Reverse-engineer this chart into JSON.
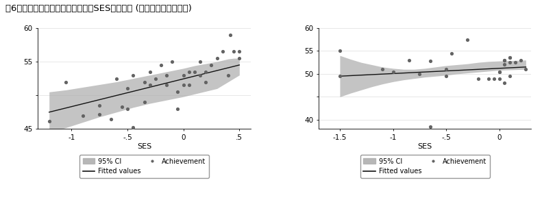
{
  "title": "嘷6　学校レベルでの学力スコアとSESの散布図 (小５が左、中２が右)",
  "title_fontsize": 9.5,
  "plot1": {
    "xlim": [
      -1.3,
      0.6
    ],
    "ylim": [
      45,
      60
    ],
    "xticks": [
      -1.0,
      -0.5,
      0.0,
      0.5
    ],
    "xtick_labels": [
      "-1",
      "-.5",
      "0",
      ".5"
    ],
    "yticks": [
      45,
      50,
      55,
      60
    ],
    "ytick_labels": [
      "45",
      "",
      "55",
      "60"
    ],
    "xlabel": "SES",
    "scatter_x": [
      -1.2,
      -1.05,
      -0.9,
      -0.75,
      -0.75,
      -0.65,
      -0.6,
      -0.55,
      -0.5,
      -0.5,
      -0.45,
      -0.45,
      -0.35,
      -0.35,
      -0.3,
      -0.3,
      -0.25,
      -0.2,
      -0.15,
      -0.15,
      -0.1,
      -0.05,
      -0.05,
      0.0,
      0.0,
      0.05,
      0.05,
      0.1,
      0.15,
      0.15,
      0.2,
      0.2,
      0.25,
      0.3,
      0.35,
      0.4,
      0.42,
      0.45,
      0.5,
      0.5
    ],
    "scatter_y": [
      46.2,
      52.0,
      47.0,
      48.5,
      47.2,
      46.5,
      52.5,
      48.3,
      51.0,
      48.0,
      45.2,
      53.0,
      52.0,
      49.0,
      53.5,
      51.5,
      52.5,
      54.5,
      53.0,
      51.5,
      55.0,
      48.0,
      50.5,
      53.0,
      51.5,
      53.5,
      51.5,
      53.5,
      53.0,
      55.0,
      53.5,
      52.0,
      54.5,
      55.5,
      56.5,
      53.0,
      59.0,
      56.5,
      55.5,
      56.5
    ],
    "fit_x0": -1.2,
    "fit_y0": 47.5,
    "fit_x1": 0.5,
    "fit_y1": 54.5,
    "ci_upper": [
      50.5,
      50.8,
      51.2,
      51.6,
      52.0,
      52.5,
      53.0,
      53.5,
      54.0,
      54.4,
      54.7,
      55.0,
      55.2,
      55.4,
      55.5,
      55.5,
      55.5
    ],
    "ci_lower": [
      44.5,
      45.2,
      46.0,
      46.8,
      47.5,
      48.2,
      48.8,
      49.3,
      49.8,
      50.2,
      50.6,
      51.0,
      51.5,
      52.0,
      52.5,
      52.8,
      53.0
    ],
    "ci_x": [
      -1.2,
      -1.05,
      -0.9,
      -0.75,
      -0.6,
      -0.45,
      -0.3,
      -0.15,
      0.0,
      0.1,
      0.2,
      0.3,
      0.35,
      0.4,
      0.45,
      0.48,
      0.5
    ]
  },
  "plot2": {
    "xlim": [
      -1.7,
      0.3
    ],
    "ylim": [
      38,
      60
    ],
    "xticks": [
      -1.5,
      -1.0,
      -0.5,
      0.0
    ],
    "xtick_labels": [
      "-1.5",
      "-1",
      "-.5",
      "0"
    ],
    "yticks": [
      40,
      45,
      50,
      55,
      60
    ],
    "ytick_labels": [
      "40",
      "",
      "50",
      "55",
      "60"
    ],
    "xlabel": "SES",
    "scatter_x": [
      -1.5,
      -1.5,
      -1.1,
      -1.0,
      -0.85,
      -0.75,
      -0.65,
      -0.65,
      -0.5,
      -0.5,
      -0.45,
      -0.3,
      -0.2,
      -0.1,
      -0.05,
      0.0,
      0.0,
      0.0,
      0.05,
      0.05,
      0.05,
      0.05,
      0.1,
      0.1,
      0.1,
      0.1,
      0.15,
      0.2,
      0.25
    ],
    "scatter_y": [
      55.0,
      49.5,
      51.0,
      50.5,
      53.0,
      50.0,
      52.8,
      38.5,
      51.0,
      49.5,
      54.5,
      57.5,
      49.0,
      49.0,
      49.0,
      50.5,
      50.5,
      49.0,
      53.0,
      52.0,
      53.0,
      48.0,
      52.5,
      53.5,
      49.5,
      53.5,
      52.5,
      53.0,
      51.0
    ],
    "fit_x0": -1.5,
    "fit_y0": 49.5,
    "fit_x1": 0.25,
    "fit_y1": 51.5,
    "ci_upper": [
      54.0,
      53.2,
      52.5,
      52.0,
      51.5,
      51.2,
      51.0,
      51.0,
      51.2,
      51.5,
      51.8,
      52.0,
      52.2,
      52.5,
      52.7,
      52.8,
      53.0
    ],
    "ci_lower": [
      45.0,
      45.8,
      46.5,
      47.2,
      47.8,
      48.3,
      48.7,
      49.0,
      49.3,
      49.5,
      49.7,
      50.0,
      50.2,
      50.4,
      50.6,
      50.8,
      51.0
    ],
    "ci_x": [
      -1.5,
      -1.4,
      -1.3,
      -1.2,
      -1.1,
      -1.0,
      -0.9,
      -0.8,
      -0.7,
      -0.6,
      -0.5,
      -0.4,
      -0.3,
      -0.2,
      -0.1,
      0.0,
      0.25
    ]
  },
  "scatter_color": "#636363",
  "scatter_size": 14,
  "fit_line_color": "#111111",
  "ci_color": "#b0b0b0",
  "ci_alpha": 0.75,
  "legend_fontsize": 7,
  "bg_color": "#ffffff"
}
